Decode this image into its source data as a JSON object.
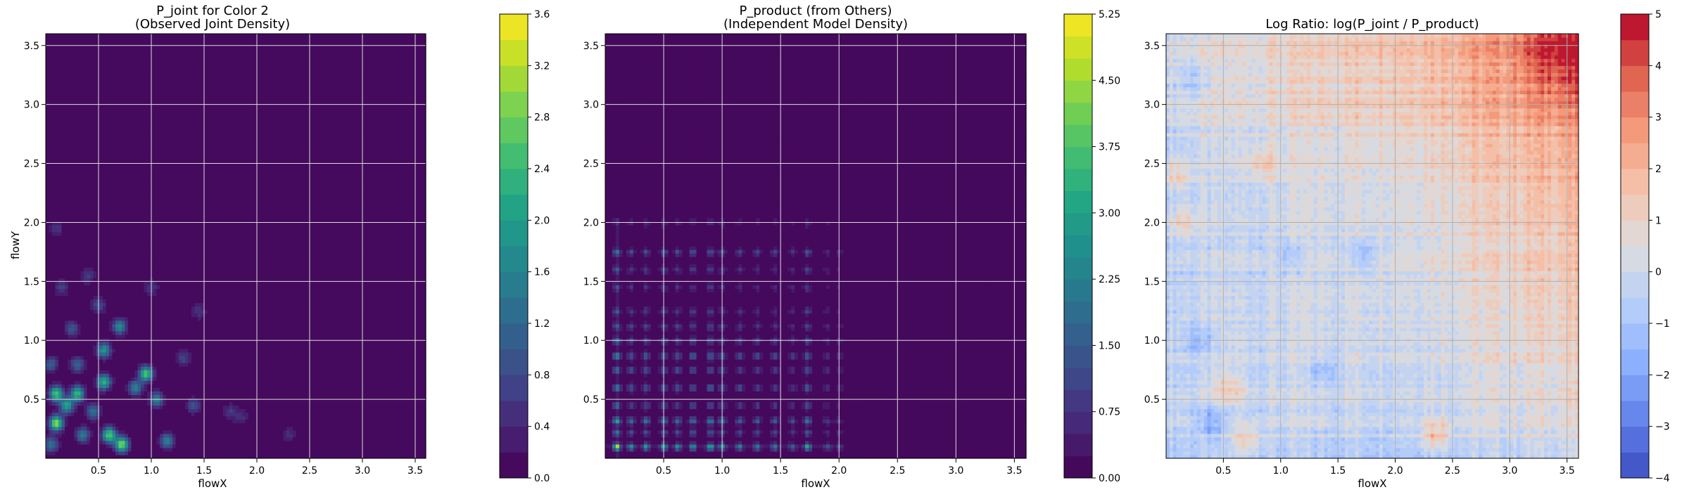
{
  "chart_data": [
    {
      "type": "heatmap",
      "title_line1": "P_joint for Color 2",
      "title_line2": "(Observed Joint Density)",
      "xlabel": "flowX",
      "ylabel": "flowY",
      "xlim": [
        0.0,
        3.6
      ],
      "ylim": [
        0.0,
        3.6
      ],
      "xticks": [
        "0.5",
        "1.0",
        "1.5",
        "2.0",
        "2.5",
        "3.0",
        "3.5"
      ],
      "yticks": [
        "0.5",
        "1.0",
        "1.5",
        "2.0",
        "2.5",
        "3.0",
        "3.5"
      ],
      "grid": true,
      "colormap": "viridis",
      "colorbar": {
        "range": [
          0.0,
          3.6
        ],
        "ticks": [
          "0.0",
          "0.4",
          "0.8",
          "1.2",
          "1.6",
          "2.0",
          "2.4",
          "2.8",
          "3.2",
          "3.6"
        ],
        "levels": 18
      },
      "hotspots": [
        {
          "x": 0.1,
          "y": 0.3,
          "v": 3.0
        },
        {
          "x": 0.1,
          "y": 0.55,
          "v": 2.6
        },
        {
          "x": 0.3,
          "y": 0.55,
          "v": 2.4
        },
        {
          "x": 0.2,
          "y": 0.45,
          "v": 2.1
        },
        {
          "x": 0.6,
          "y": 0.2,
          "v": 2.7
        },
        {
          "x": 0.72,
          "y": 0.12,
          "v": 2.9
        },
        {
          "x": 0.55,
          "y": 0.65,
          "v": 2.3
        },
        {
          "x": 0.95,
          "y": 0.72,
          "v": 2.6
        },
        {
          "x": 0.85,
          "y": 0.6,
          "v": 1.6
        },
        {
          "x": 0.55,
          "y": 0.92,
          "v": 1.9
        },
        {
          "x": 0.7,
          "y": 1.12,
          "v": 1.7
        },
        {
          "x": 1.05,
          "y": 0.5,
          "v": 1.5
        },
        {
          "x": 1.15,
          "y": 0.15,
          "v": 1.6
        },
        {
          "x": 0.35,
          "y": 0.2,
          "v": 1.5
        },
        {
          "x": 0.05,
          "y": 0.12,
          "v": 1.4
        },
        {
          "x": 0.45,
          "y": 0.4,
          "v": 1.4
        },
        {
          "x": 0.3,
          "y": 0.8,
          "v": 1.2
        },
        {
          "x": 0.05,
          "y": 0.8,
          "v": 1.1
        },
        {
          "x": 0.5,
          "y": 1.3,
          "v": 0.9
        },
        {
          "x": 0.25,
          "y": 1.1,
          "v": 1.0
        },
        {
          "x": 0.4,
          "y": 1.55,
          "v": 0.7
        },
        {
          "x": 0.15,
          "y": 1.45,
          "v": 0.7
        },
        {
          "x": 0.1,
          "y": 1.95,
          "v": 0.6
        },
        {
          "x": 1.4,
          "y": 0.45,
          "v": 0.9
        },
        {
          "x": 1.3,
          "y": 0.85,
          "v": 0.8
        },
        {
          "x": 1.45,
          "y": 1.25,
          "v": 0.6
        },
        {
          "x": 1.75,
          "y": 0.4,
          "v": 0.6
        },
        {
          "x": 1.85,
          "y": 0.35,
          "v": 0.5
        },
        {
          "x": 2.3,
          "y": 0.2,
          "v": 0.5
        },
        {
          "x": 1.0,
          "y": 1.45,
          "v": 0.6
        }
      ]
    },
    {
      "type": "heatmap",
      "title_line1": "P_product (from Others)",
      "title_line2": "(Independent Model Density)",
      "xlabel": "flowX",
      "ylabel": "",
      "xlim": [
        0.0,
        3.6
      ],
      "ylim": [
        0.0,
        3.6
      ],
      "xticks": [
        "0.5",
        "1.0",
        "1.5",
        "2.0",
        "2.5",
        "3.0",
        "3.5"
      ],
      "yticks": [
        "0.5",
        "1.0",
        "1.5",
        "2.0",
        "2.5",
        "3.0",
        "3.5"
      ],
      "grid": true,
      "colormap": "viridis",
      "colorbar": {
        "range": [
          0.0,
          5.25
        ],
        "ticks": [
          "0.00",
          "0.75",
          "1.50",
          "2.25",
          "3.00",
          "3.75",
          "4.50",
          "5.25"
        ],
        "levels": 21
      },
      "x_marginal_peaks": [
        {
          "x": 0.1,
          "w": 1.0
        },
        {
          "x": 0.22,
          "w": 0.55
        },
        {
          "x": 0.35,
          "w": 0.6
        },
        {
          "x": 0.5,
          "w": 0.65
        },
        {
          "x": 0.62,
          "w": 0.55
        },
        {
          "x": 0.75,
          "w": 0.6
        },
        {
          "x": 0.9,
          "w": 0.7
        },
        {
          "x": 1.0,
          "w": 0.6
        },
        {
          "x": 1.15,
          "w": 0.5
        },
        {
          "x": 1.3,
          "w": 0.45
        },
        {
          "x": 1.45,
          "w": 0.45
        },
        {
          "x": 1.6,
          "w": 0.35
        },
        {
          "x": 1.73,
          "w": 0.65
        },
        {
          "x": 1.9,
          "w": 0.25
        },
        {
          "x": 2.0,
          "w": 0.2
        }
      ],
      "y_marginal_peaks": [
        {
          "y": 0.1,
          "w": 1.0
        },
        {
          "y": 0.22,
          "w": 0.45
        },
        {
          "y": 0.32,
          "w": 0.7
        },
        {
          "y": 0.45,
          "w": 0.4
        },
        {
          "y": 0.6,
          "w": 0.5
        },
        {
          "y": 0.75,
          "w": 0.45
        },
        {
          "y": 0.87,
          "w": 0.55
        },
        {
          "y": 1.0,
          "w": 0.45
        },
        {
          "y": 1.12,
          "w": 0.35
        },
        {
          "y": 1.25,
          "w": 0.3
        },
        {
          "y": 1.45,
          "w": 0.25
        },
        {
          "y": 1.6,
          "w": 0.3
        },
        {
          "y": 1.75,
          "w": 0.45
        },
        {
          "y": 2.0,
          "w": 0.15
        }
      ],
      "peak_value": 5.1
    },
    {
      "type": "heatmap",
      "title": "Log Ratio: log(P_joint / P_product)",
      "xlabel": "flowX",
      "ylabel": "",
      "xlim": [
        0.0,
        3.6
      ],
      "ylim": [
        0.0,
        3.6
      ],
      "xticks": [
        "0.5",
        "1.0",
        "1.5",
        "2.0",
        "2.5",
        "3.0",
        "3.5"
      ],
      "yticks": [
        "0.5",
        "1.0",
        "1.5",
        "2.0",
        "2.5",
        "3.0",
        "3.5"
      ],
      "grid": true,
      "colormap": "coolwarm",
      "colorbar": {
        "range": [
          -4,
          5
        ],
        "ticks": [
          "−4",
          "−3",
          "−2",
          "−1",
          "0",
          "1",
          "2",
          "3",
          "4",
          "5"
        ],
        "levels": 18
      },
      "trend": {
        "base": -0.3,
        "toward_top_right": 3.8,
        "corner_peak": {
          "x": 3.45,
          "y": 3.45,
          "v": 4.6
        }
      },
      "features": [
        {
          "x": 2.35,
          "y": 0.2,
          "v": 2.0
        },
        {
          "x": 0.7,
          "y": 0.15,
          "v": 1.6
        },
        {
          "x": 0.85,
          "y": 2.5,
          "v": 1.4
        },
        {
          "x": 0.55,
          "y": 0.6,
          "v": 1.5
        },
        {
          "x": 0.4,
          "y": 0.3,
          "v": -1.8
        },
        {
          "x": 0.3,
          "y": 1.0,
          "v": -1.4
        },
        {
          "x": 0.15,
          "y": 2.0,
          "v": 1.5
        },
        {
          "x": 0.1,
          "y": 2.4,
          "v": 1.4
        },
        {
          "x": 1.7,
          "y": 1.72,
          "v": -1.4
        },
        {
          "x": 1.1,
          "y": 1.7,
          "v": -1.2
        },
        {
          "x": 0.25,
          "y": 3.2,
          "v": -1.0
        },
        {
          "x": 1.35,
          "y": 0.75,
          "v": -1.0
        }
      ]
    }
  ]
}
